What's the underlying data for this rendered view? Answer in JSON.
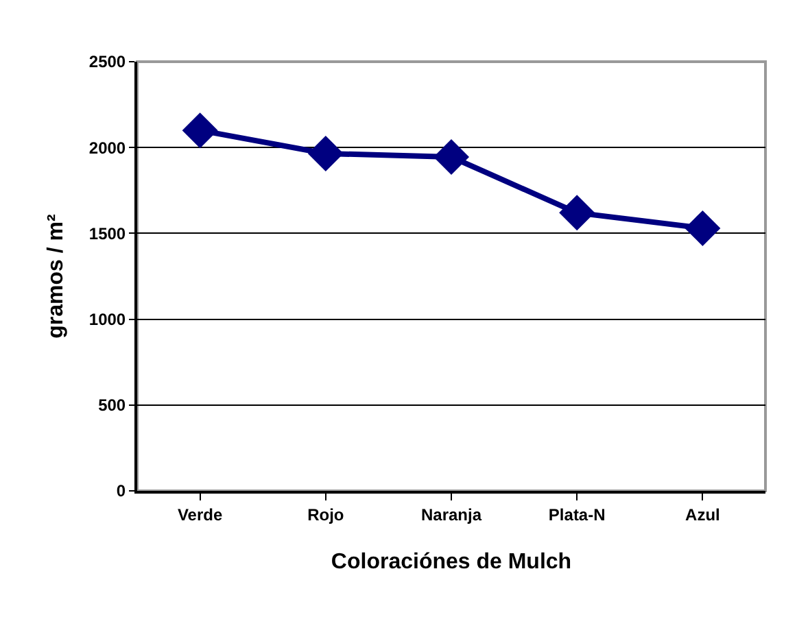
{
  "chart_data": {
    "type": "line",
    "xlabel": "Coloraciónes de Mulch",
    "ylabel": "gramos / m²",
    "categories": [
      "Verde",
      "Rojo",
      "Naranja",
      "Plata-N",
      "Azul"
    ],
    "series": [
      {
        "color": "#000080",
        "values": [
          2100,
          1965,
          1945,
          1620,
          1530
        ]
      }
    ],
    "ylim": [
      0,
      2500
    ],
    "yticks": [
      0,
      500,
      1000,
      1500,
      2000,
      2500
    ],
    "grid": "y",
    "marker": "diamond",
    "line_style": "solid"
  }
}
